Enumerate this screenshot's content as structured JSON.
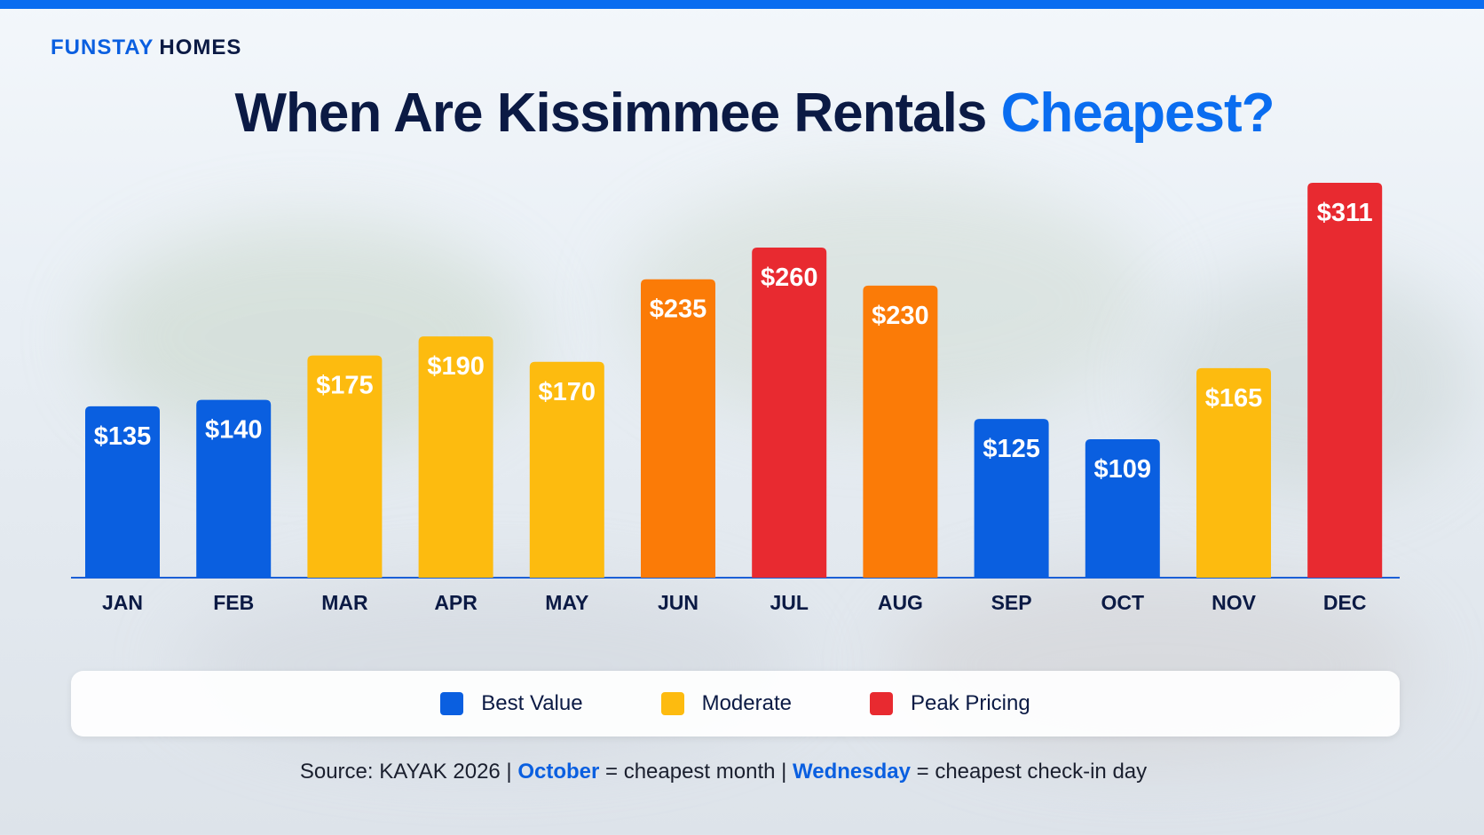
{
  "brand": {
    "part1": "FUNSTAY",
    "part2": "HOMES"
  },
  "title": {
    "main": "When Are Kissimmee Rentals",
    "accent": "Cheapest?"
  },
  "colors": {
    "accent": "#0a6df0",
    "best_value": "#0a5fe0",
    "moderate": "#fdbb0f",
    "orange": "#fb7b07",
    "peak": "#e82a30",
    "navy": "#0b1a44"
  },
  "chart_data": {
    "type": "bar",
    "categories": [
      "JAN",
      "FEB",
      "MAR",
      "APR",
      "MAY",
      "JUN",
      "JUL",
      "AUG",
      "SEP",
      "OCT",
      "NOV",
      "DEC"
    ],
    "values": [
      135,
      140,
      175,
      190,
      170,
      235,
      260,
      230,
      125,
      109,
      165,
      311
    ],
    "value_labels": [
      "$135",
      "$140",
      "$175",
      "$190",
      "$170",
      "$235",
      "$260",
      "$230",
      "$125",
      "$109",
      "$165",
      "$311"
    ],
    "bar_colors": [
      "#0a5fe0",
      "#0a5fe0",
      "#fdbb0f",
      "#fdbb0f",
      "#fdbb0f",
      "#fb7b07",
      "#e82a30",
      "#fb7b07",
      "#0a5fe0",
      "#0a5fe0",
      "#fdbb0f",
      "#e82a30"
    ],
    "ylim": [
      0,
      311
    ],
    "grid": false,
    "legend_placement": "bottom"
  },
  "legend": [
    {
      "label": "Best Value",
      "color": "#0a5fe0"
    },
    {
      "label": "Moderate",
      "color": "#fdbb0f"
    },
    {
      "label": "Peak Pricing",
      "color": "#e82a30"
    }
  ],
  "source": {
    "prefix": "Source: KAYAK 2026  |  ",
    "highlight1": "October",
    "mid": " = cheapest month  |  ",
    "highlight2": "Wednesday",
    "suffix": " = cheapest check-in day"
  }
}
